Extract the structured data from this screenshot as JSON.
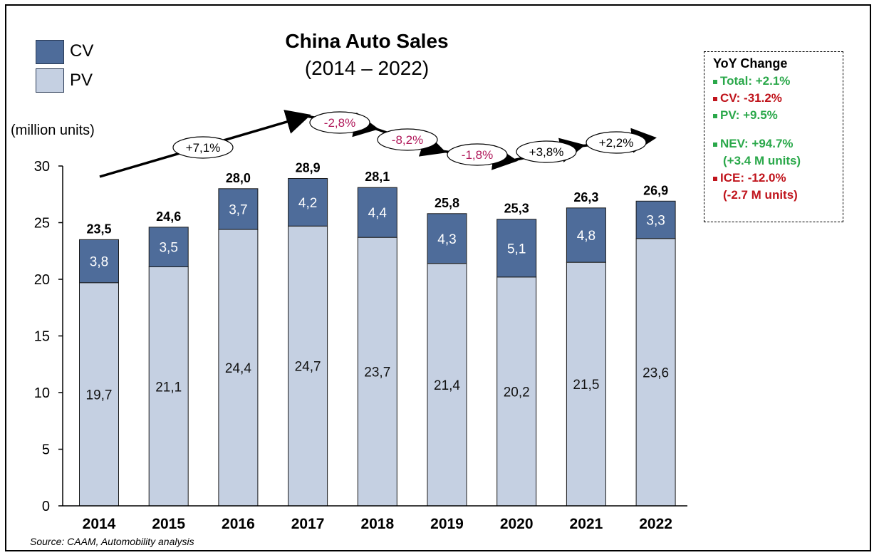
{
  "chart_data": {
    "type": "bar",
    "stacked": true,
    "title": "China Auto Sales",
    "subtitle": "(2014 – 2022)",
    "ylabel": "(million units)",
    "ylim": [
      0,
      30
    ],
    "yticks": [
      0,
      5,
      10,
      15,
      20,
      25,
      30
    ],
    "categories": [
      "2014",
      "2015",
      "2016",
      "2017",
      "2018",
      "2019",
      "2020",
      "2021",
      "2022"
    ],
    "series": [
      {
        "name": "PV",
        "color": "#c5d0e2",
        "values": [
          19.7,
          21.1,
          24.4,
          24.7,
          23.7,
          21.4,
          20.2,
          21.5,
          23.6
        ],
        "labels": [
          "19,7",
          "21,1",
          "24,4",
          "24,7",
          "23,7",
          "21,4",
          "20,2",
          "21,5",
          "23,6"
        ]
      },
      {
        "name": "CV",
        "color": "#4e6c9a",
        "values": [
          3.8,
          3.5,
          3.7,
          4.2,
          4.4,
          4.3,
          5.1,
          4.8,
          3.3
        ],
        "labels": [
          "3,8",
          "3,5",
          "3,7",
          "4,2",
          "4,4",
          "4,3",
          "5,1",
          "4,8",
          "3,3"
        ]
      }
    ],
    "totals": [
      23.5,
      24.6,
      28.0,
      28.9,
      28.1,
      25.8,
      25.3,
      26.3,
      26.9
    ],
    "total_labels": [
      "23,5",
      "24,6",
      "28,0",
      "28,9",
      "28,1",
      "25,8",
      "25,3",
      "26,3",
      "26,9"
    ],
    "trend_changes": [
      {
        "label": "+7,1%",
        "color": "#000000"
      },
      {
        "label": "-2,8%",
        "color": "#b0185a"
      },
      {
        "label": "-8,2%",
        "color": "#b0185a"
      },
      {
        "label": "-1,8%",
        "color": "#b0185a"
      },
      {
        "label": "+3,8%",
        "color": "#000000"
      },
      {
        "label": "+2,2%",
        "color": "#000000"
      }
    ],
    "legend": {
      "position": "top-left",
      "entries": [
        "CV",
        "PV"
      ]
    },
    "grid": false
  },
  "legend": {
    "cv_label": "CV",
    "pv_label": "PV"
  },
  "yoy": {
    "title": "YoY Change",
    "green": "#2aa84a",
    "red": "#c0141c",
    "items": [
      {
        "text": "Total: +2.1%",
        "color": "#2aa84a"
      },
      {
        "text": "CV: -31.2%",
        "color": "#c0141c"
      },
      {
        "text": "PV: +9.5%",
        "color": "#2aa84a"
      },
      {
        "text": "NEV: +94.7%",
        "color": "#2aa84a",
        "sub": "(+3.4 M units)"
      },
      {
        "text": "ICE: -12.0%",
        "color": "#c0141c",
        "sub": "(-2.7 M units)"
      }
    ]
  },
  "source": "Source: CAAM, Automobility analysis"
}
